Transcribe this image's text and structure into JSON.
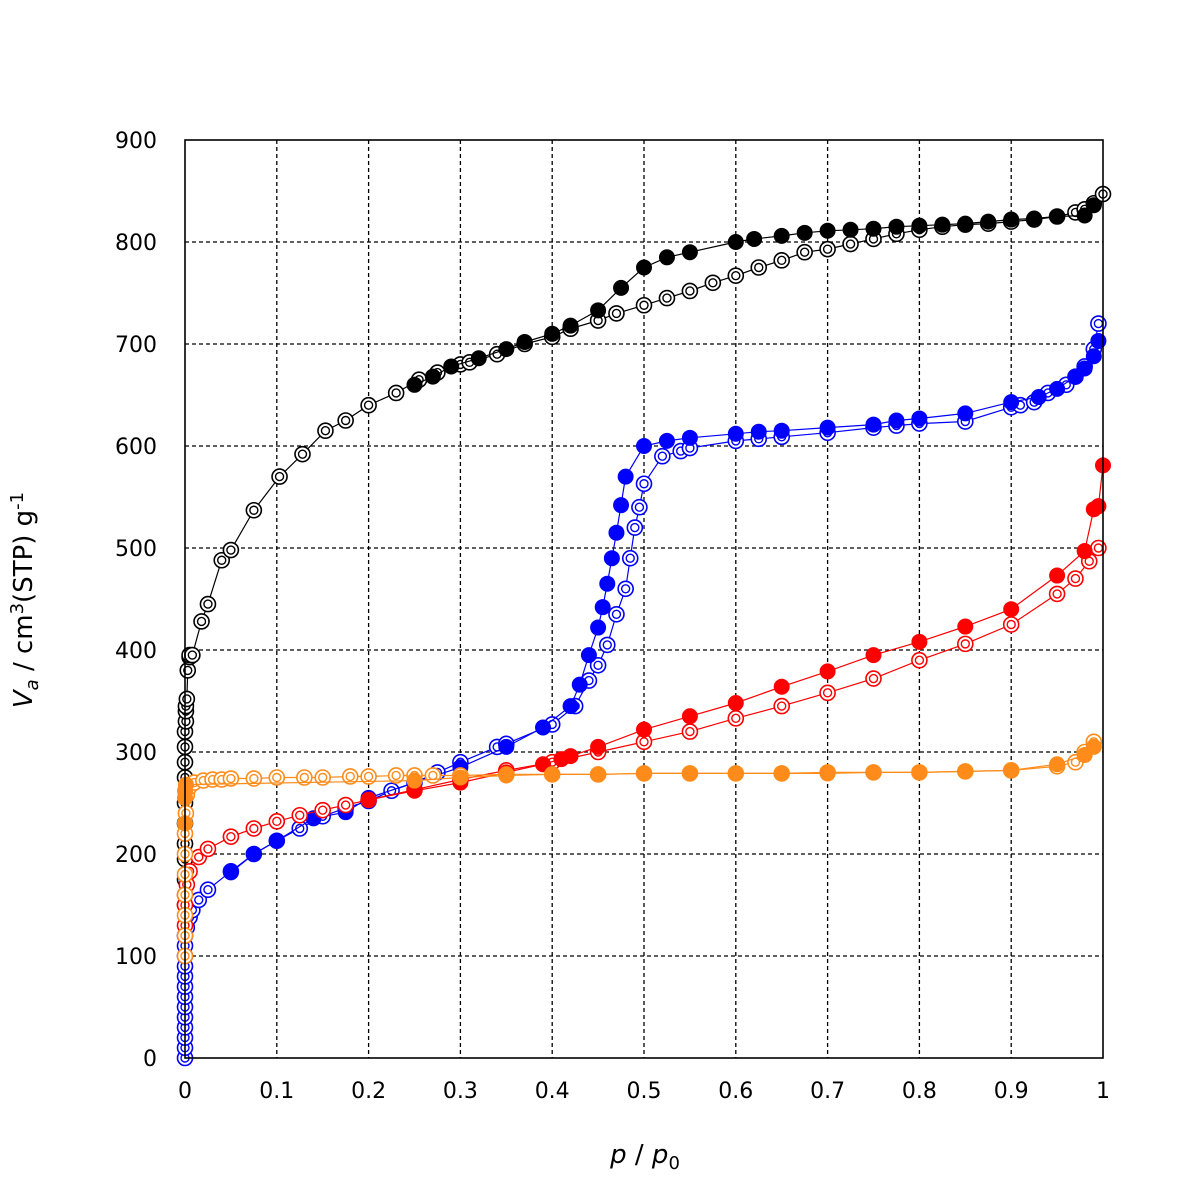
{
  "chart_data": {
    "type": "scatter",
    "title": "",
    "x_axis": {
      "label_parts": [
        "p",
        " / ",
        "p",
        "0"
      ],
      "range": [
        0,
        1
      ],
      "tick_labels": [
        "0",
        "0.1",
        "0.2",
        "0.3",
        "0.4",
        "0.5",
        "0.6",
        "0.7",
        "0.8",
        "0.9",
        "1"
      ],
      "ticks": [
        0,
        0.1,
        0.2,
        0.3,
        0.4,
        0.5,
        0.6,
        0.7,
        0.8,
        0.9,
        1
      ]
    },
    "y_axis": {
      "label_parts": [
        "V",
        "a",
        " / cm",
        "3",
        "(STP) g",
        "-1"
      ],
      "range": [
        0,
        900
      ],
      "tick_labels": [
        "0",
        "100",
        "200",
        "300",
        "400",
        "500",
        "600",
        "700",
        "800",
        "900"
      ],
      "ticks": [
        0,
        100,
        200,
        300,
        400,
        500,
        600,
        700,
        800,
        900
      ]
    },
    "grid": true,
    "legend": "none",
    "series": [
      {
        "color": "#000000",
        "marker": "double-circle-open",
        "x": [
          0.0,
          0.0,
          0.0,
          0.0,
          0.0,
          0.0,
          0.0,
          0.0,
          0.0,
          0.0,
          0.001,
          0.001,
          0.001,
          0.002,
          0.003,
          0.005,
          0.005,
          0.008,
          0.018,
          0.025,
          0.04,
          0.05,
          0.075,
          0.103,
          0.128,
          0.153,
          0.175,
          0.2,
          0.23,
          0.255,
          0.275,
          0.3,
          0.31,
          0.34,
          0.37,
          0.4,
          0.42,
          0.45,
          0.47,
          0.5,
          0.525,
          0.55,
          0.575,
          0.6,
          0.625,
          0.65,
          0.675,
          0.7,
          0.725,
          0.75,
          0.775,
          0.8,
          0.825,
          0.85,
          0.875,
          0.9,
          0.925,
          0.95,
          0.97,
          0.98,
          0.99,
          1.0
        ],
        "y": [
          150,
          175,
          195,
          210,
          230,
          250,
          275,
          290,
          305,
          320,
          330,
          340,
          345,
          352,
          380,
          393,
          395,
          395,
          428,
          445,
          488,
          498,
          537,
          570,
          592,
          615,
          625,
          640,
          652,
          665,
          672,
          680,
          682,
          690,
          700,
          707,
          715,
          723,
          730,
          738,
          745,
          752,
          760,
          767,
          775,
          782,
          790,
          793,
          798,
          803,
          808,
          812,
          815,
          817,
          818,
          820,
          822,
          825,
          829,
          832,
          838,
          847
        ]
      },
      {
        "color": "#000000",
        "marker": "filled-circle",
        "x": [
          0.25,
          0.27,
          0.29,
          0.32,
          0.35,
          0.37,
          0.4,
          0.42,
          0.45,
          0.475,
          0.5,
          0.525,
          0.55,
          0.6,
          0.62,
          0.65,
          0.675,
          0.7,
          0.725,
          0.75,
          0.775,
          0.8,
          0.825,
          0.85,
          0.875,
          0.9,
          0.925,
          0.95,
          0.98,
          0.99
        ],
        "y": [
          660,
          668,
          678,
          686,
          695,
          702,
          710,
          718,
          733,
          755,
          775,
          785,
          790,
          800,
          803,
          806,
          809,
          811,
          812,
          813,
          815,
          816,
          817,
          818,
          820,
          822,
          823,
          825,
          826,
          836
        ]
      },
      {
        "color": "#0000ff",
        "marker": "double-circle-open",
        "x": [
          0.0,
          0.0,
          0.0,
          0.0,
          0.0,
          0.0,
          0.0,
          0.0,
          0.0,
          0.0,
          0.0,
          0.0,
          0.0,
          0.002,
          0.005,
          0.008,
          0.015,
          0.025,
          0.05,
          0.075,
          0.1,
          0.125,
          0.15,
          0.175,
          0.2,
          0.225,
          0.25,
          0.275,
          0.3,
          0.34,
          0.35,
          0.4,
          0.425,
          0.44,
          0.45,
          0.46,
          0.47,
          0.48,
          0.485,
          0.49,
          0.495,
          0.5,
          0.52,
          0.54,
          0.55,
          0.6,
          0.625,
          0.65,
          0.7,
          0.75,
          0.775,
          0.8,
          0.85,
          0.9,
          0.91,
          0.925,
          0.94,
          0.96,
          0.97,
          0.98,
          0.99,
          0.995
        ],
        "y": [
          0,
          10,
          20,
          30,
          40,
          50,
          60,
          70,
          80,
          90,
          100,
          110,
          120,
          128,
          138,
          145,
          155,
          165,
          183,
          200,
          213,
          225,
          237,
          245,
          252,
          262,
          270,
          280,
          290,
          305,
          308,
          327,
          345,
          370,
          385,
          405,
          435,
          460,
          490,
          520,
          540,
          563,
          590,
          595,
          598,
          605,
          607,
          609,
          613,
          618,
          620,
          622,
          624,
          638,
          640,
          643,
          652,
          660,
          668,
          678,
          695,
          720
        ]
      },
      {
        "color": "#0000ff",
        "marker": "filled-circle",
        "x": [
          0.05,
          0.075,
          0.1,
          0.14,
          0.175,
          0.2,
          0.25,
          0.3,
          0.35,
          0.39,
          0.42,
          0.43,
          0.44,
          0.45,
          0.455,
          0.46,
          0.465,
          0.47,
          0.475,
          0.48,
          0.5,
          0.525,
          0.55,
          0.6,
          0.625,
          0.65,
          0.7,
          0.75,
          0.775,
          0.8,
          0.85,
          0.9,
          0.93,
          0.95,
          0.97,
          0.98,
          0.99,
          0.995
        ],
        "y": [
          182,
          200,
          213,
          235,
          241,
          255,
          270,
          285,
          305,
          324,
          345,
          366,
          395,
          422,
          442,
          465,
          490,
          515,
          542,
          570,
          600,
          605,
          608,
          612,
          614,
          615,
          618,
          621,
          625,
          627,
          632,
          643,
          648,
          656,
          668,
          676,
          688,
          703
        ]
      },
      {
        "color": "#ff0000",
        "marker": "double-circle-open",
        "x": [
          0.0,
          0.0,
          0.0,
          0.002,
          0.005,
          0.015,
          0.025,
          0.05,
          0.075,
          0.1,
          0.125,
          0.15,
          0.175,
          0.2,
          0.25,
          0.3,
          0.35,
          0.4,
          0.45,
          0.5,
          0.55,
          0.6,
          0.65,
          0.7,
          0.75,
          0.8,
          0.85,
          0.9,
          0.95,
          0.97,
          0.985,
          0.995
        ],
        "y": [
          130,
          150,
          160,
          170,
          183,
          197,
          205,
          217,
          225,
          232,
          238,
          243,
          248,
          253,
          263,
          273,
          282,
          290,
          300,
          310,
          320,
          333,
          345,
          358,
          372,
          390,
          406,
          425,
          455,
          470,
          487,
          500
        ]
      },
      {
        "color": "#ff0000",
        "marker": "filled-circle",
        "x": [
          0.2,
          0.25,
          0.3,
          0.35,
          0.39,
          0.41,
          0.42,
          0.45,
          0.5,
          0.55,
          0.6,
          0.65,
          0.7,
          0.75,
          0.8,
          0.85,
          0.9,
          0.95,
          0.98,
          0.99,
          0.995,
          1.0
        ],
        "y": [
          253,
          262,
          270,
          280,
          288,
          293,
          296,
          305,
          322,
          335,
          348,
          364,
          379,
          395,
          408,
          423,
          440,
          473,
          497,
          538,
          541,
          581
        ]
      },
      {
        "color": "#ff8c1a",
        "marker": "double-circle-open",
        "x": [
          0.0,
          0.0,
          0.0,
          0.0,
          0.0,
          0.0,
          0.0,
          0.001,
          0.002,
          0.005,
          0.01,
          0.02,
          0.03,
          0.04,
          0.05,
          0.075,
          0.1,
          0.13,
          0.15,
          0.18,
          0.2,
          0.23,
          0.25,
          0.27,
          0.3,
          0.35,
          0.4,
          0.45,
          0.5,
          0.55,
          0.6,
          0.65,
          0.7,
          0.75,
          0.8,
          0.85,
          0.9,
          0.95,
          0.97,
          0.98,
          0.99
        ],
        "y": [
          100,
          120,
          140,
          160,
          180,
          200,
          220,
          240,
          258,
          266,
          270,
          272,
          273,
          273,
          274,
          274,
          275,
          275,
          275,
          276,
          276,
          277,
          277,
          277,
          277,
          278,
          278,
          278,
          279,
          279,
          279,
          279,
          280,
          280,
          280,
          281,
          282,
          286,
          290,
          300,
          310
        ]
      },
      {
        "color": "#ff8c1a",
        "marker": "filled-circle",
        "x": [
          0.0,
          0.0,
          0.0,
          0.001,
          0.25,
          0.3,
          0.35,
          0.4,
          0.45,
          0.5,
          0.55,
          0.6,
          0.65,
          0.7,
          0.75,
          0.8,
          0.85,
          0.9,
          0.95,
          0.98,
          0.99
        ],
        "y": [
          230,
          255,
          262,
          268,
          272,
          275,
          277,
          278,
          278,
          279,
          279,
          279,
          279,
          279,
          280,
          280,
          281,
          282,
          288,
          297,
          305
        ]
      }
    ]
  }
}
